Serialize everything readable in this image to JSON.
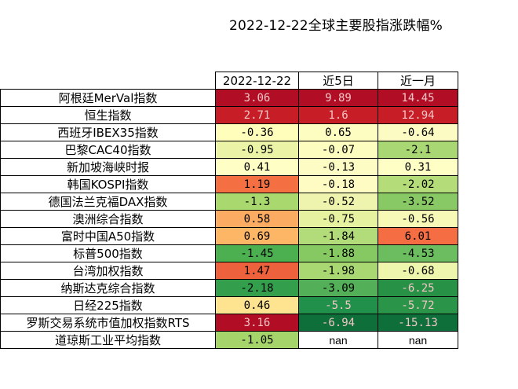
{
  "chart_data": {
    "type": "table",
    "title": "2022-12-22全球主要股指涨跌幅%",
    "columns": [
      "2022-12-22",
      "近5日",
      "近一月"
    ],
    "rows": [
      {
        "name": "阿根廷MerVal指数",
        "values": [
          "3.06",
          "9.89",
          "14.45"
        ],
        "colors": [
          "#b10e26",
          "#b10e26",
          "#b10e26"
        ]
      },
      {
        "name": "恒生指数",
        "values": [
          "2.71",
          "1.6",
          "12.94"
        ],
        "colors": [
          "#c61d27",
          "#c61d27",
          "#c61d27"
        ]
      },
      {
        "name": "西班牙IBEX35指数",
        "values": [
          "-0.36",
          "0.65",
          "-0.64"
        ],
        "colors": [
          "#fffeba",
          "#fdfcc1",
          "#fcfbc3"
        ]
      },
      {
        "name": "巴黎CAC40指数",
        "values": [
          "-0.95",
          "-0.07",
          "-2.1"
        ],
        "colors": [
          "#ebf4a6",
          "#fefdc0",
          "#a8d774"
        ]
      },
      {
        "name": "新加坡海峡时报",
        "values": [
          "0.41",
          "-0.13",
          "0.31"
        ],
        "colors": [
          "#fffec5",
          "#fdfcc4",
          "#fffec5"
        ]
      },
      {
        "name": "韩国KOSPI指数",
        "values": [
          "1.19",
          "-0.18",
          "-2.02"
        ],
        "colors": [
          "#f47043",
          "#fefcc3",
          "#b4dd79"
        ]
      },
      {
        "name": "德国法兰克福DAX指数",
        "values": [
          "-1.3",
          "-0.52",
          "-3.52"
        ],
        "colors": [
          "#a8d86e",
          "#eef4ae",
          "#88c966"
        ]
      },
      {
        "name": "澳洲综合指数",
        "values": [
          "0.58",
          "-0.75",
          "-0.56"
        ],
        "colors": [
          "#fbac62",
          "#e7f2a0",
          "#f7f9b6"
        ]
      },
      {
        "name": "富时中国A50指数",
        "values": [
          "0.69",
          "-1.84",
          "6.01"
        ],
        "colors": [
          "#fdb566",
          "#b2dc79",
          "#f46d43"
        ]
      },
      {
        "name": "标普500指数",
        "values": [
          "-1.45",
          "-1.88",
          "-4.53"
        ],
        "colors": [
          "#4caf50",
          "#86c963",
          "#6cbd5f"
        ]
      },
      {
        "name": "台湾加权指数",
        "values": [
          "1.47",
          "-1.98",
          "-0.68"
        ],
        "colors": [
          "#ee613d",
          "#a9d873",
          "#eef5ac"
        ]
      },
      {
        "name": "纳斯达克综合指数",
        "values": [
          "-2.18",
          "-3.09",
          "-6.25"
        ],
        "colors": [
          "#339e4c",
          "#53b058",
          "#279146"
        ]
      },
      {
        "name": "日经225指数",
        "values": [
          "0.46",
          "-5.5",
          "-5.72"
        ],
        "colors": [
          "#fee391",
          "#21904a",
          "#2a9448"
        ]
      },
      {
        "name": "罗斯交易系统市值加权指数RTS",
        "values": [
          "3.16",
          "-6.94",
          "-15.13"
        ],
        "colors": [
          "#b10e26",
          "#0f6f3a",
          "#0f6f3a"
        ]
      },
      {
        "name": "道琼斯工业平均指数",
        "values": [
          "-1.05",
          "nan",
          "nan"
        ],
        "colors": [
          "#a5d56a",
          "#ffffff",
          "#ffffff"
        ]
      }
    ]
  }
}
